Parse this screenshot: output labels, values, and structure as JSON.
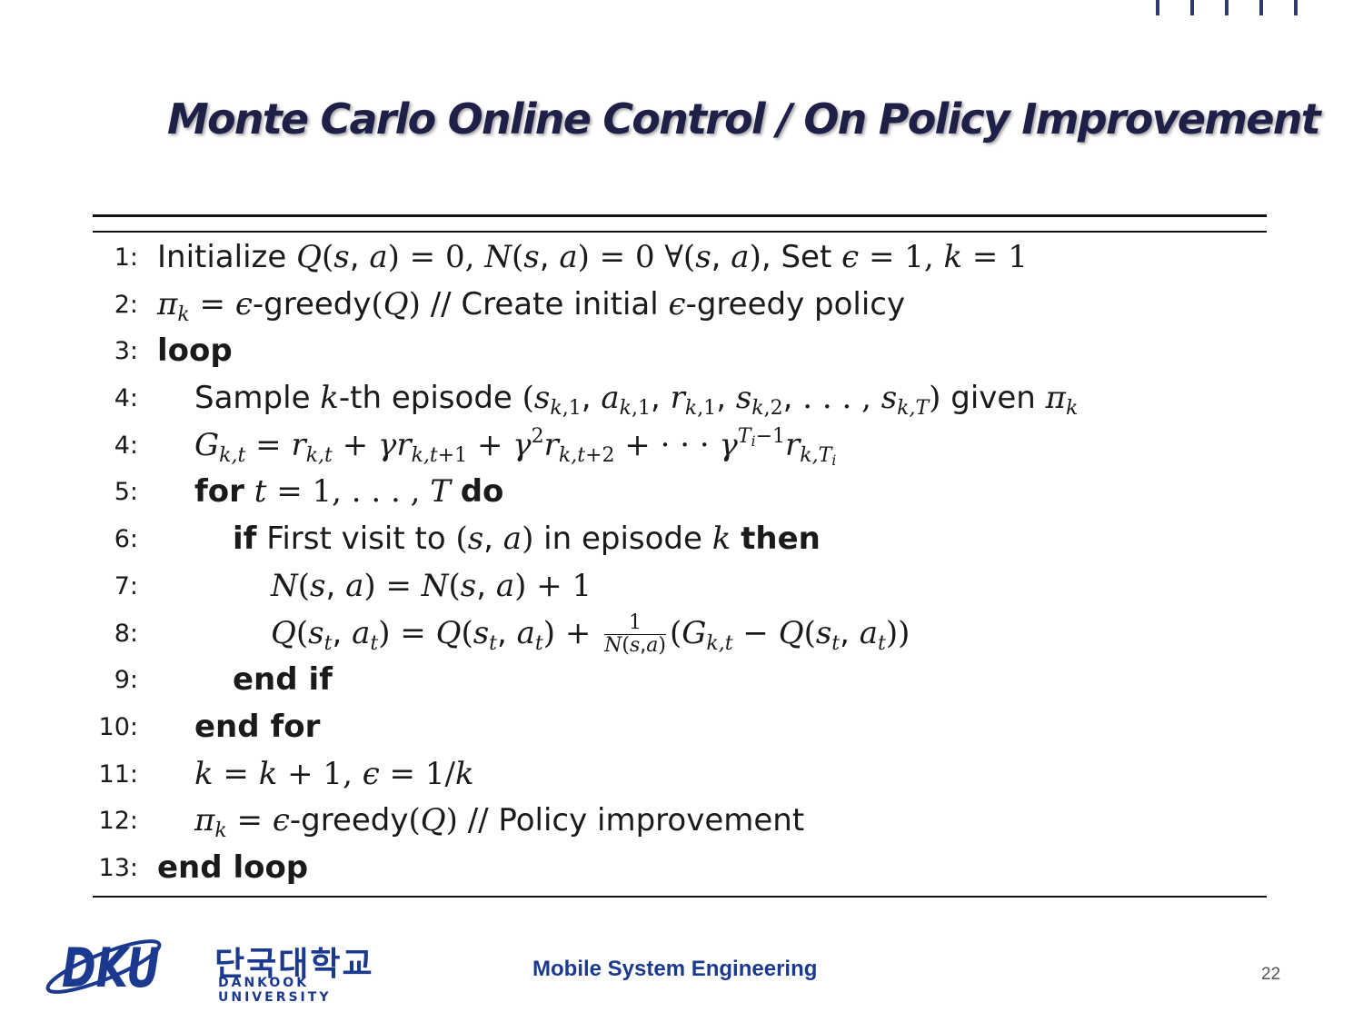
{
  "slide": {
    "title": "Monte Carlo Online Control / On Policy Improvement",
    "footer_course": "Mobile System Engineering",
    "page_number": "22",
    "logo": {
      "korean_name": "단국대학교",
      "english_name": "DANKOOK UNIVERSITY",
      "mark_text": "DKU",
      "brand_color": "#1b3a8f"
    }
  },
  "algorithm": {
    "line_numbers": [
      "1:",
      "2:",
      "3:",
      "4:",
      "4:",
      "5:",
      "6:",
      "7:",
      "8:",
      "9:",
      "10:",
      "11:",
      "12:",
      "13:"
    ],
    "words": {
      "initialize": "Initialize",
      "set": "Set",
      "greedy": "-greedy",
      "comment_initial": "// Create initial",
      "greedy_policy": "-greedy policy",
      "loop": "loop",
      "sample": "Sample",
      "th_episode": "-th episode",
      "given": "given",
      "for": "for",
      "do": "do",
      "if": "if",
      "first_visit": "First visit to",
      "in_episode": "in episode",
      "then": "then",
      "end_if": "end if",
      "end_for": "end for",
      "comment_improvement": "// Policy improvement",
      "end_loop": "end loop"
    }
  }
}
